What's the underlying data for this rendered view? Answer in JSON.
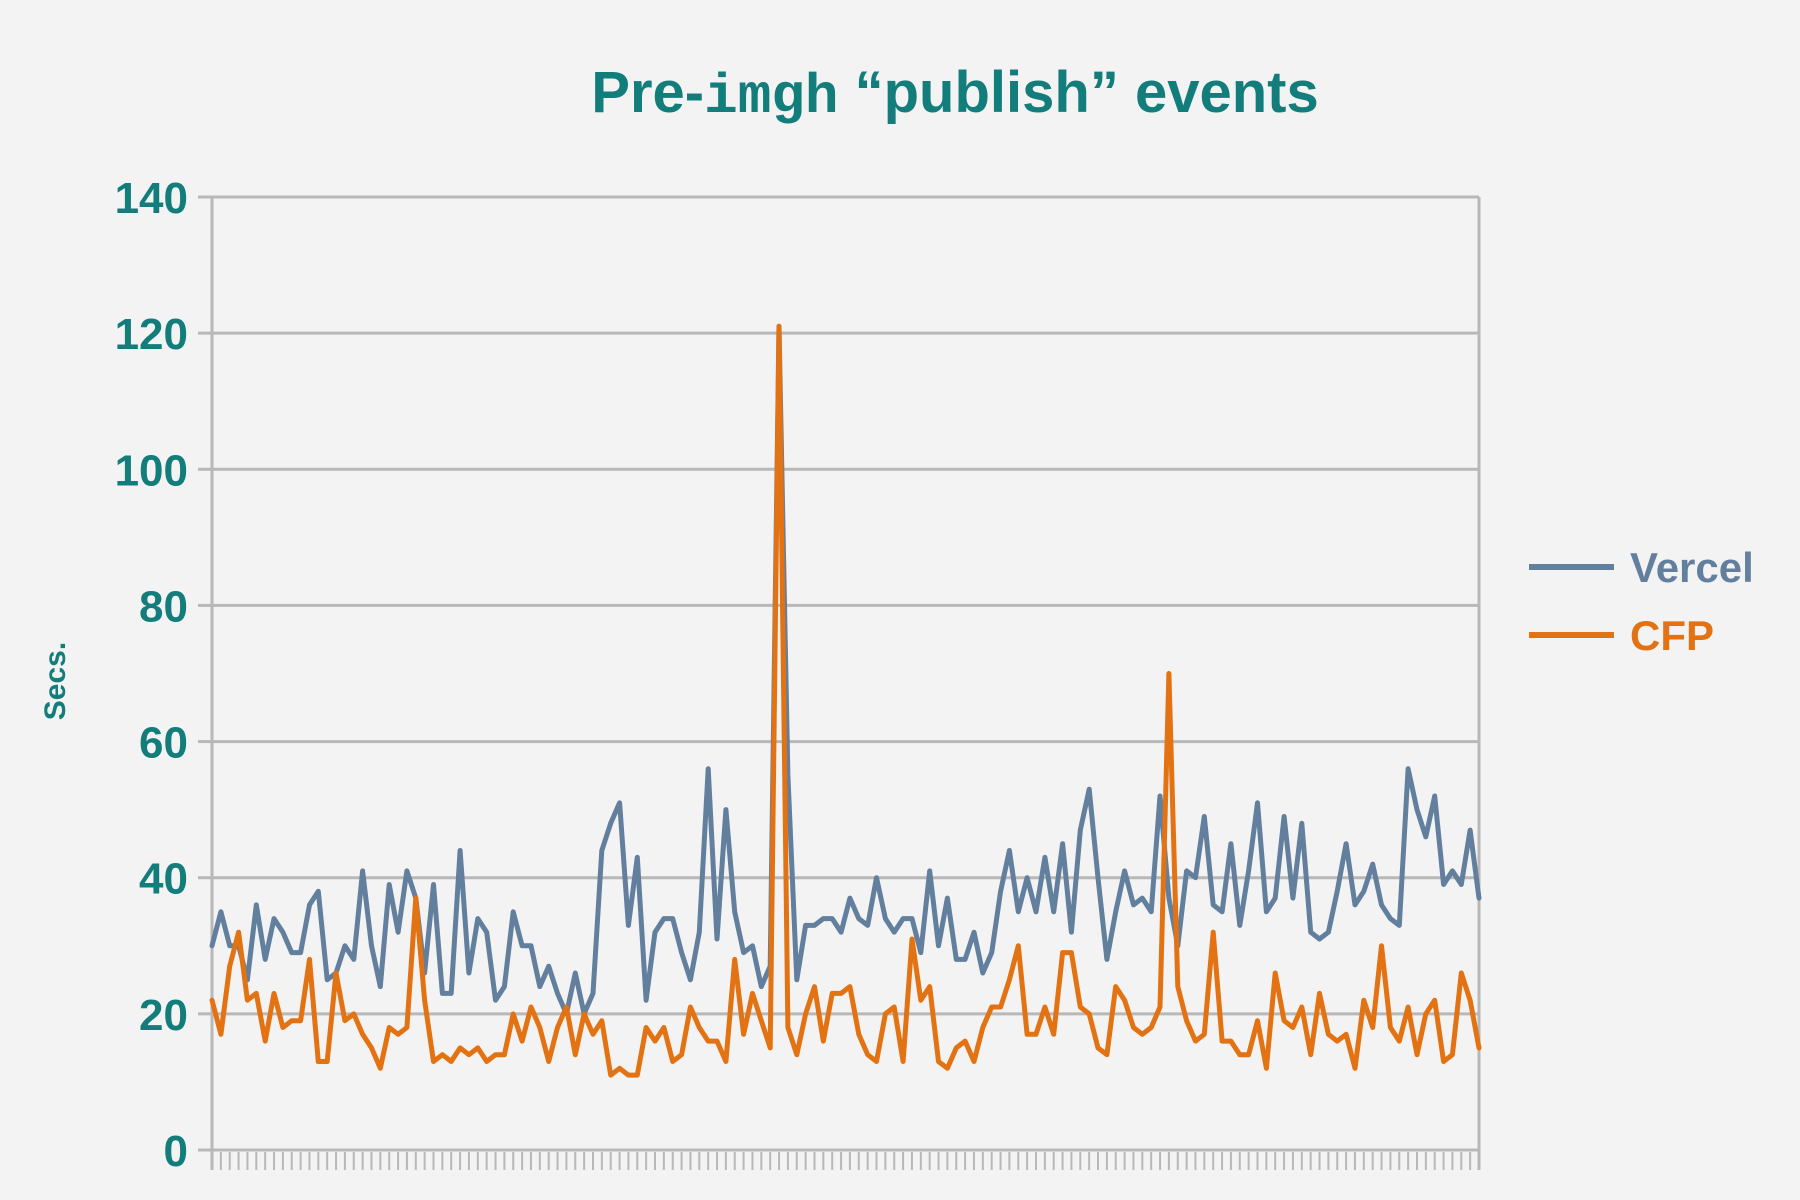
{
  "chart_data": {
    "type": "line",
    "title": {
      "prefix": "Pre-",
      "mono": "imgh",
      "suffix": " “publish” events"
    },
    "ylabel": "Secs.",
    "xlabel": "",
    "ylim": [
      0,
      140
    ],
    "yticks": [
      "0",
      "20",
      "40",
      "60",
      "80",
      "100",
      "120",
      "140"
    ],
    "grid": true,
    "legend_position": "right",
    "text_color": "#137d7b",
    "series": [
      {
        "name": "Vercel",
        "color": "#637f9e",
        "values": [
          30,
          35,
          30,
          30,
          25,
          36,
          28,
          34,
          32,
          29,
          29,
          36,
          38,
          25,
          26,
          30,
          28,
          41,
          30,
          24,
          39,
          32,
          41,
          37,
          26,
          39,
          23,
          23,
          44,
          26,
          34,
          32,
          22,
          24,
          35,
          30,
          30,
          24,
          27,
          23,
          20,
          26,
          20,
          23,
          44,
          48,
          51,
          33,
          43,
          22,
          32,
          34,
          34,
          29,
          25,
          32,
          56,
          31,
          50,
          35,
          29,
          30,
          24,
          27,
          121,
          55,
          25,
          33,
          33,
          34,
          34,
          32,
          37,
          34,
          33,
          40,
          34,
          32,
          34,
          34,
          29,
          41,
          30,
          37,
          28,
          28,
          32,
          26,
          29,
          38,
          44,
          35,
          40,
          35,
          43,
          35,
          45,
          32,
          47,
          53,
          40,
          28,
          35,
          41,
          36,
          37,
          35,
          52,
          37,
          30,
          41,
          40,
          49,
          36,
          35,
          45,
          33,
          41,
          51,
          35,
          37,
          49,
          37,
          48,
          32,
          31,
          32,
          38,
          45,
          36,
          38,
          42,
          36,
          34,
          33,
          56,
          50,
          46,
          52,
          39,
          41,
          39,
          47,
          37
        ]
      },
      {
        "name": "CFP",
        "color": "#e37213",
        "values": [
          22,
          17,
          27,
          32,
          22,
          23,
          16,
          23,
          18,
          19,
          19,
          28,
          13,
          13,
          26,
          19,
          20,
          17,
          15,
          12,
          18,
          17,
          18,
          37,
          22,
          13,
          14,
          13,
          15,
          14,
          15,
          13,
          14,
          14,
          20,
          16,
          21,
          18,
          13,
          18,
          21,
          14,
          20,
          17,
          19,
          11,
          12,
          11,
          11,
          18,
          16,
          18,
          13,
          14,
          21,
          18,
          16,
          16,
          13,
          28,
          17,
          23,
          19,
          15,
          121,
          18,
          14,
          20,
          24,
          16,
          23,
          23,
          24,
          17,
          14,
          13,
          20,
          21,
          13,
          31,
          22,
          24,
          13,
          12,
          15,
          16,
          13,
          18,
          21,
          21,
          25,
          30,
          17,
          17,
          21,
          17,
          29,
          29,
          21,
          20,
          15,
          14,
          24,
          22,
          18,
          17,
          18,
          21,
          70,
          24,
          19,
          16,
          17,
          32,
          16,
          16,
          14,
          14,
          19,
          12,
          26,
          19,
          18,
          21,
          14,
          23,
          17,
          16,
          17,
          12,
          22,
          18,
          30,
          18,
          16,
          21,
          14,
          20,
          22,
          13,
          14,
          26,
          22,
          15
        ]
      }
    ]
  }
}
